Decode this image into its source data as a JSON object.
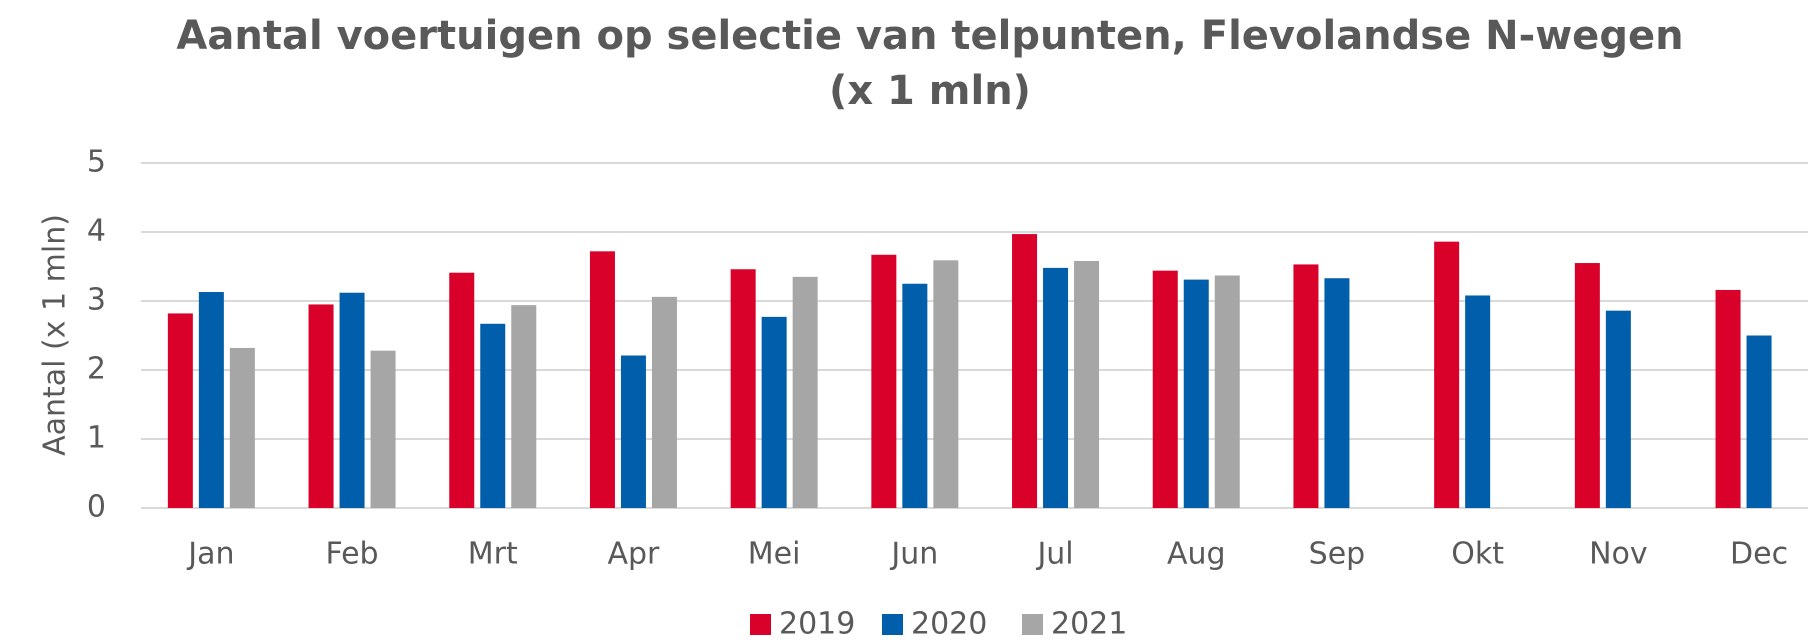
{
  "chart_data": {
    "type": "bar",
    "title": [
      "Aantal voertuigen op selectie van telpunten, Flevolandse N-wegen",
      "(x 1 mln)"
    ],
    "y_label": "Aantal (x 1 mln)",
    "categories": [
      "Jan",
      "Feb",
      "Mrt",
      "Apr",
      "Mei",
      "Jun",
      "Jul",
      "Aug",
      "Sep",
      "Okt",
      "Nov",
      "Dec"
    ],
    "series": [
      {
        "name": "2019",
        "color": "#d9002a",
        "values": [
          2.82,
          2.95,
          3.41,
          3.72,
          3.46,
          3.67,
          3.97,
          3.44,
          3.53,
          3.86,
          3.55,
          3.16
        ]
      },
      {
        "name": "2020",
        "color": "#005eaa",
        "values": [
          3.13,
          3.12,
          2.67,
          2.21,
          2.77,
          3.25,
          3.48,
          3.31,
          3.33,
          3.08,
          2.86,
          2.5
        ]
      },
      {
        "name": "2021",
        "color": "#a6a6a6",
        "values": [
          2.32,
          2.28,
          2.94,
          3.06,
          3.35,
          3.59,
          3.58,
          3.37,
          null,
          null,
          null,
          null
        ]
      }
    ],
    "ylim": [
      0,
      5
    ],
    "yticks": [
      0,
      1,
      2,
      3,
      4,
      5
    ],
    "grid": true,
    "legend": "bottom"
  }
}
